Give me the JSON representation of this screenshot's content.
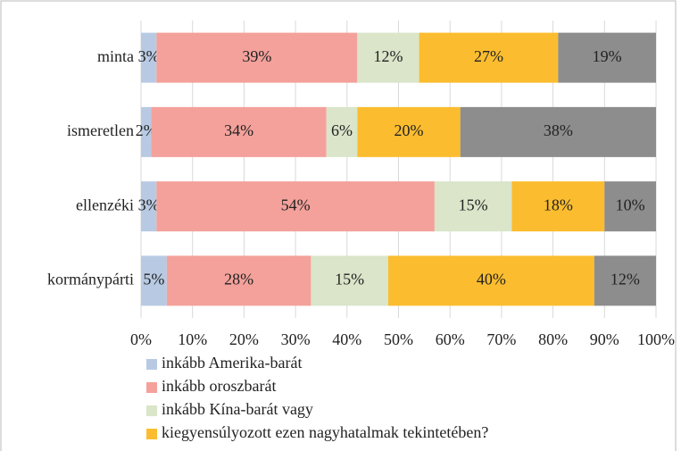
{
  "chart_data": {
    "type": "stacked-barh",
    "categories": [
      "minta",
      "ismeretlen",
      "ellenzéki",
      "kormánypárti"
    ],
    "series": [
      {
        "name": "inkább Amerika-barát",
        "color": "#b8cae3",
        "values": [
          3,
          2,
          3,
          5
        ],
        "value_labels": [
          "3%",
          "2%",
          "3%",
          "5%"
        ]
      },
      {
        "name": "inkább oroszbarát",
        "color": "#f4a19b",
        "values": [
          39,
          34,
          54,
          28
        ],
        "value_labels": [
          "39%",
          "34%",
          "54%",
          "28%"
        ]
      },
      {
        "name": "inkább Kína-barát vagy",
        "color": "#dae5c9",
        "values": [
          12,
          6,
          15,
          15
        ],
        "value_labels": [
          "12%",
          "6%",
          "15%",
          "15%"
        ]
      },
      {
        "name": "kiegyensúlyozott ezen nagyhatalmak tekintetében?",
        "color": "#fbbd2f",
        "values": [
          27,
          20,
          18,
          40
        ],
        "value_labels": [
          "27%",
          "20%",
          "18%",
          "40%"
        ]
      },
      {
        "color": "#8d8d8d",
        "values": [
          19,
          38,
          10,
          12
        ],
        "value_labels": [
          "19%",
          "38%",
          "10%",
          "12%"
        ]
      }
    ],
    "xlim": [
      0,
      100
    ],
    "xticks": [
      {
        "value": 0,
        "label": "0%"
      },
      {
        "value": 10,
        "label": "10%"
      },
      {
        "value": 20,
        "label": "20%"
      },
      {
        "value": 30,
        "label": "30%"
      },
      {
        "value": 40,
        "label": "40%"
      },
      {
        "value": 50,
        "label": "50%"
      },
      {
        "value": 60,
        "label": "60%"
      },
      {
        "value": 70,
        "label": "70%"
      },
      {
        "value": 80,
        "label": "80%"
      },
      {
        "value": 90,
        "label": "90%"
      },
      {
        "value": 100,
        "label": "100%"
      }
    ],
    "grid": true
  }
}
